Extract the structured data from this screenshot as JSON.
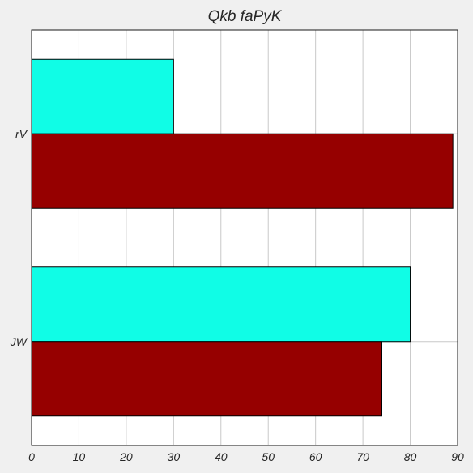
{
  "chart_data": {
    "type": "bar",
    "orientation": "horizontal",
    "title": "Qkb faPyK",
    "xlabel": "",
    "ylabel": "",
    "categories": [
      "rV",
      "JW"
    ],
    "series": [
      {
        "values": [
          30,
          80
        ],
        "color": "#10fde6"
      },
      {
        "values": [
          89,
          74
        ],
        "color": "#960000"
      }
    ],
    "xlim": [
      0,
      90
    ],
    "xticks": [
      0,
      10,
      20,
      30,
      40,
      50,
      60,
      70,
      80,
      90
    ],
    "grid": true,
    "legend": "none"
  },
  "colors": {
    "figure_background": "#f0f0f0",
    "plot_background": "#ffffff",
    "grid": "#c8c8c8",
    "text": "#262626"
  }
}
